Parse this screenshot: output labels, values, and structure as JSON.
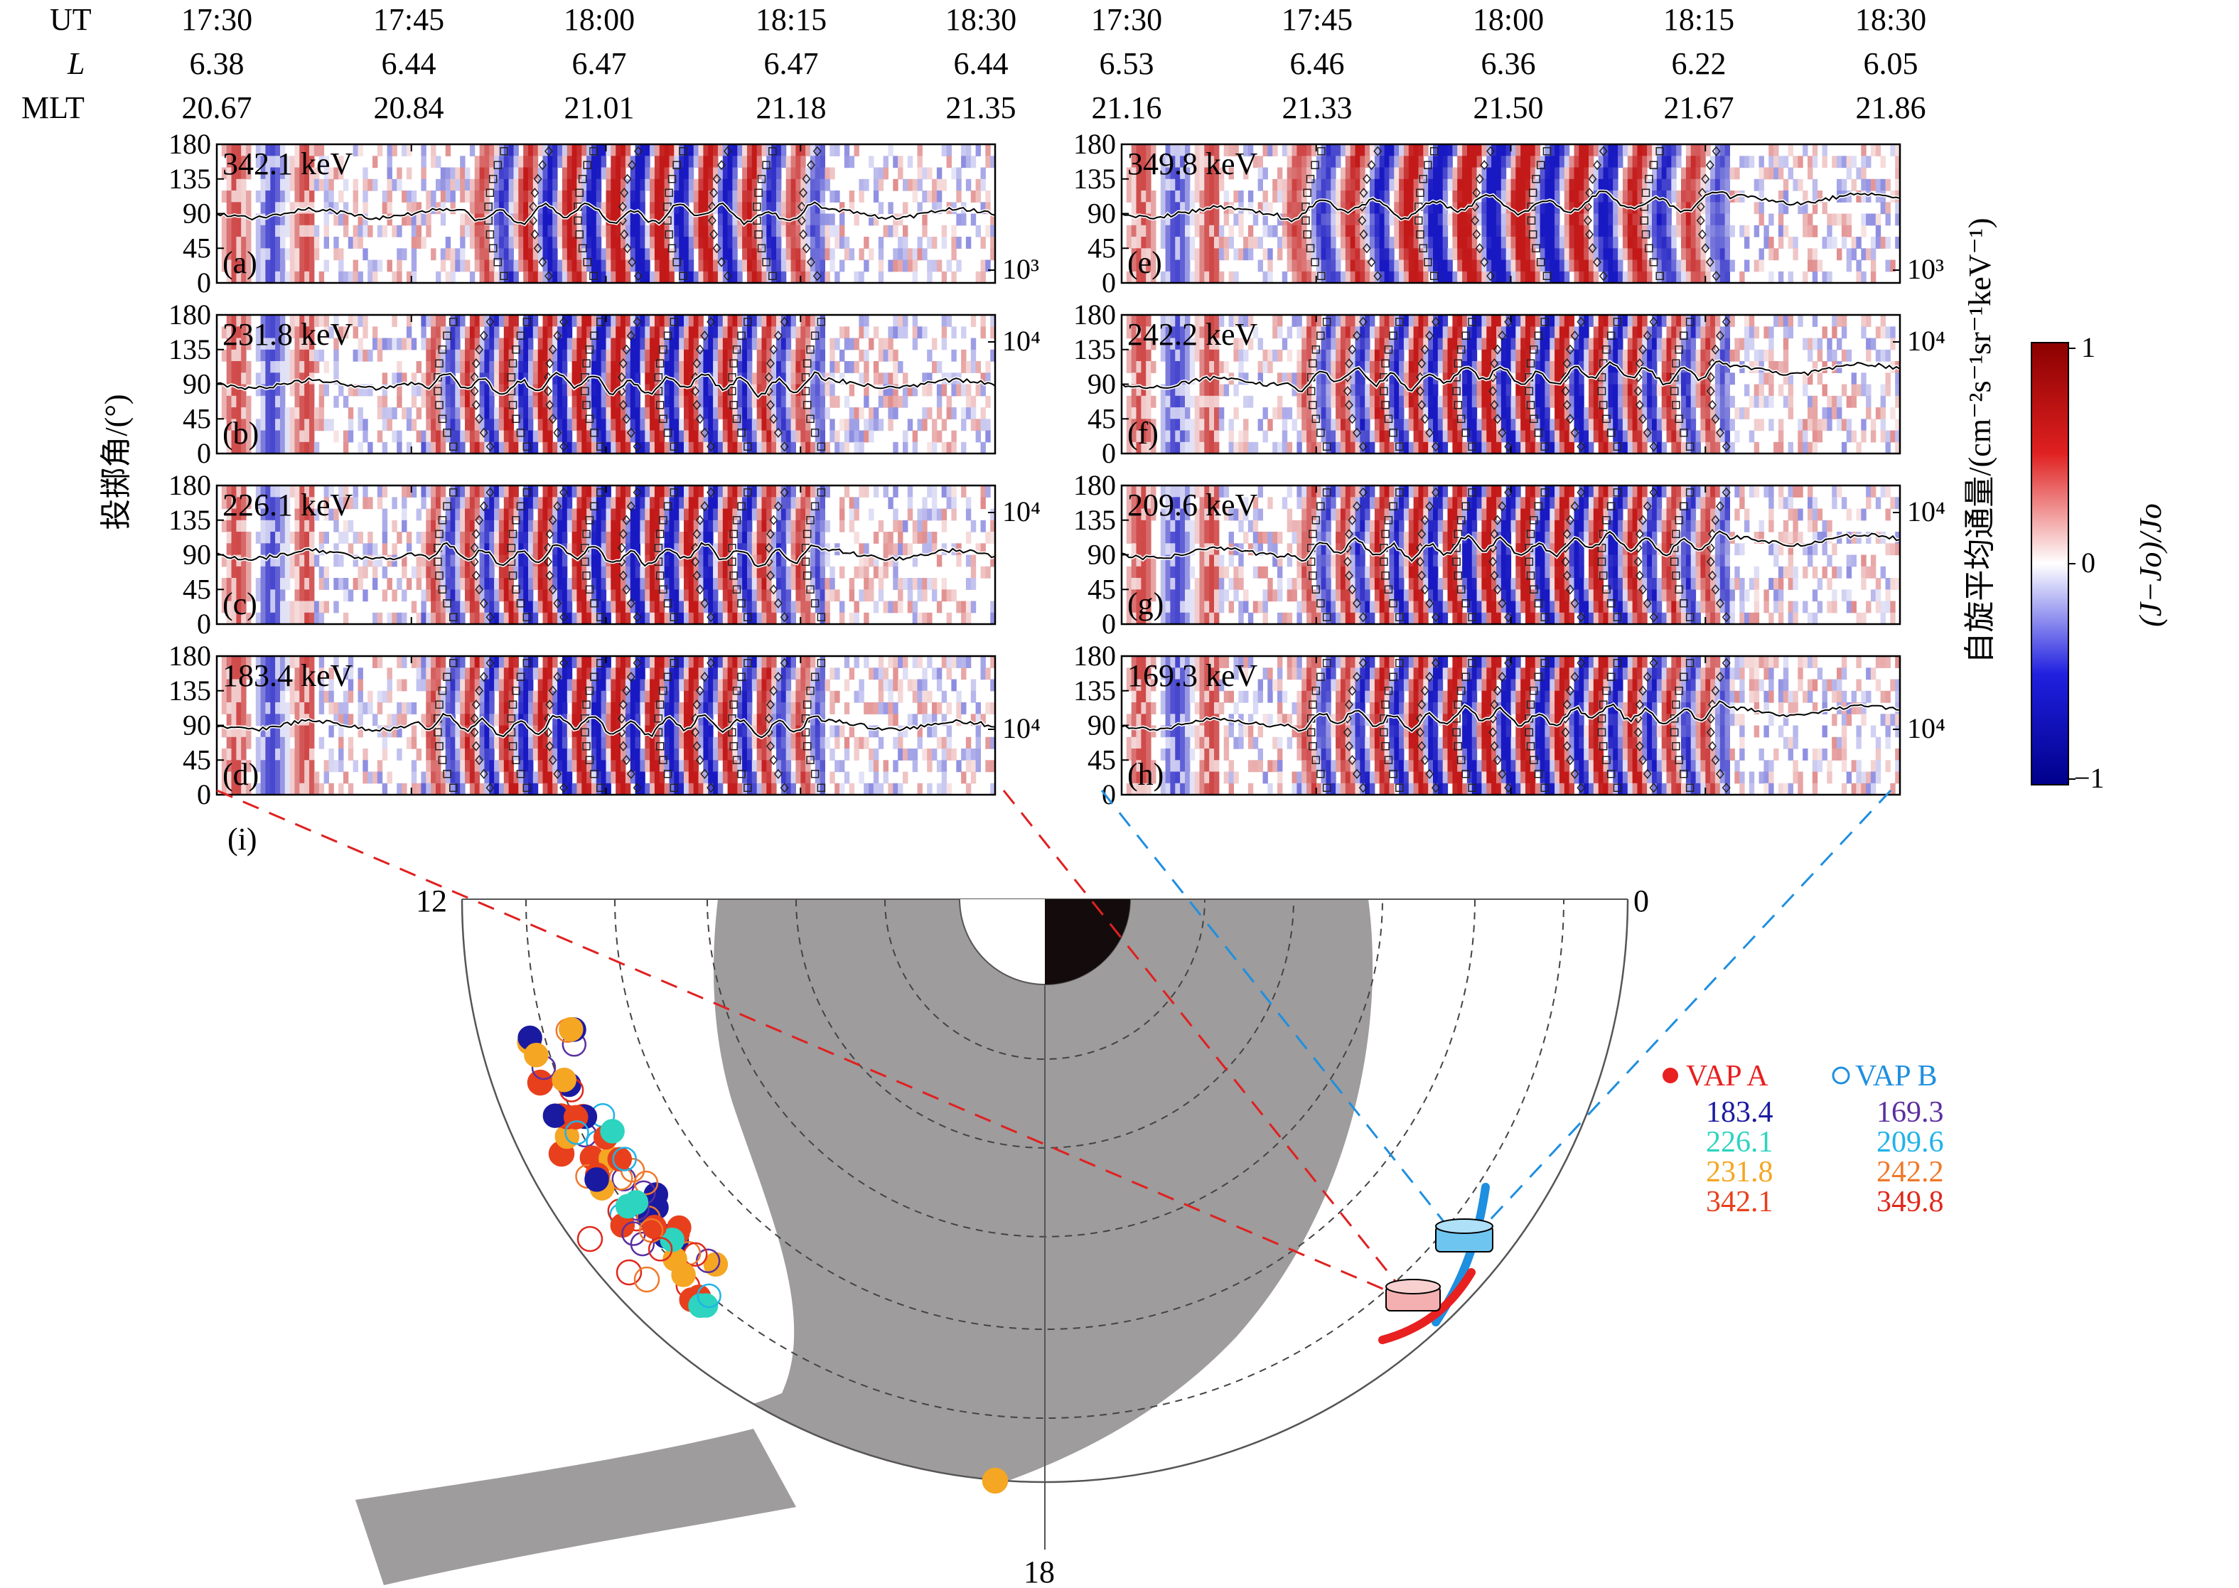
{
  "header": {
    "left": {
      "rows": [
        {
          "label": "UT",
          "values": [
            "17:30",
            "17:45",
            "18:00",
            "18:15",
            "18:30"
          ]
        },
        {
          "label": "L",
          "values": [
            "6.38",
            "6.44",
            "6.47",
            "6.47",
            "6.44"
          ]
        },
        {
          "label": "MLT",
          "values": [
            "20.67",
            "20.84",
            "21.01",
            "21.18",
            "21.35"
          ]
        }
      ]
    },
    "right": {
      "rows": [
        {
          "label": "",
          "values": [
            "17:30",
            "17:45",
            "18:00",
            "18:15",
            "18:30"
          ]
        },
        {
          "label": "",
          "values": [
            "6.53",
            "6.46",
            "6.36",
            "6.22",
            "6.05"
          ]
        },
        {
          "label": "",
          "values": [
            "21.16",
            "21.33",
            "21.50",
            "21.67",
            "21.86"
          ]
        }
      ]
    }
  },
  "y_axis_label": "投掷角/(°)",
  "right_axis_label": "自旋平均通量/(cm⁻²s⁻¹sr⁻¹keV⁻¹)",
  "colorbar": {
    "label": "(J−Jo)/Jo",
    "ticks": [
      "1",
      "0",
      "−1"
    ],
    "colors": [
      "#b40000",
      "#ffffff",
      "#0000b4"
    ]
  },
  "map": {
    "label": "(i)",
    "mlt_labels": {
      "noon": "12",
      "dusk": "18",
      "midnight": "0"
    },
    "legend": {
      "a_label": "VAP A",
      "b_label": "VAP B",
      "a_energies": [
        "183.4",
        "226.1",
        "231.8",
        "342.1"
      ],
      "b_energies": [
        "169.3",
        "209.6",
        "242.2",
        "349.8"
      ],
      "a_colors": [
        "#1a1aa0",
        "#2dd4bf",
        "#f5a623",
        "#e8401c"
      ],
      "b_colors": [
        "#5b2fa0",
        "#1fb3e8",
        "#f0782a",
        "#e0281c"
      ]
    }
  },
  "chart_data": [
    {
      "type": "heatmap",
      "panel": "(a)",
      "energy": "342.1 keV",
      "probe": "A",
      "y_ticks": [
        "180",
        "135",
        "90",
        "45",
        "0"
      ],
      "ylim": [
        0,
        180
      ],
      "flux_tick": "10³",
      "wave_peaks": 8
    },
    {
      "type": "heatmap",
      "panel": "(b)",
      "energy": "231.8 keV",
      "probe": "A",
      "y_ticks": [
        "180",
        "135",
        "90",
        "45",
        "0"
      ],
      "ylim": [
        0,
        180
      ],
      "flux_tick": "10⁴",
      "wave_peaks": 11
    },
    {
      "type": "heatmap",
      "panel": "(c)",
      "energy": "226.1 keV",
      "probe": "A",
      "y_ticks": [
        "180",
        "135",
        "90",
        "45",
        "0"
      ],
      "ylim": [
        0,
        180
      ],
      "flux_tick": "10⁴",
      "wave_peaks": 11
    },
    {
      "type": "heatmap",
      "panel": "(d)",
      "energy": "183.4 keV",
      "probe": "A",
      "y_ticks": [
        "180",
        "135",
        "90",
        "45",
        "0"
      ],
      "ylim": [
        0,
        180
      ],
      "flux_tick": "10⁴",
      "wave_peaks": 11
    },
    {
      "type": "heatmap",
      "panel": "(e)",
      "energy": "349.8 keV",
      "probe": "B",
      "y_ticks": [
        "180",
        "135",
        "90",
        "45",
        "0"
      ],
      "ylim": [
        0,
        180
      ],
      "flux_tick": "10³",
      "wave_peaks": 8
    },
    {
      "type": "heatmap",
      "panel": "(f)",
      "energy": "242.2 keV",
      "probe": "B",
      "y_ticks": [
        "180",
        "135",
        "90",
        "45",
        "0"
      ],
      "ylim": [
        0,
        180
      ],
      "flux_tick": "10⁴",
      "wave_peaks": 12
    },
    {
      "type": "heatmap",
      "panel": "(g)",
      "energy": "209.6 keV",
      "probe": "B",
      "y_ticks": [
        "180",
        "135",
        "90",
        "45",
        "0"
      ],
      "ylim": [
        0,
        180
      ],
      "flux_tick": "10⁴",
      "wave_peaks": 12
    },
    {
      "type": "heatmap",
      "panel": "(h)",
      "energy": "169.3 keV",
      "probe": "B",
      "y_ticks": [
        "180",
        "135",
        "90",
        "45",
        "0"
      ],
      "ylim": [
        0,
        180
      ],
      "flux_tick": "10⁴",
      "wave_peaks": 12
    }
  ]
}
